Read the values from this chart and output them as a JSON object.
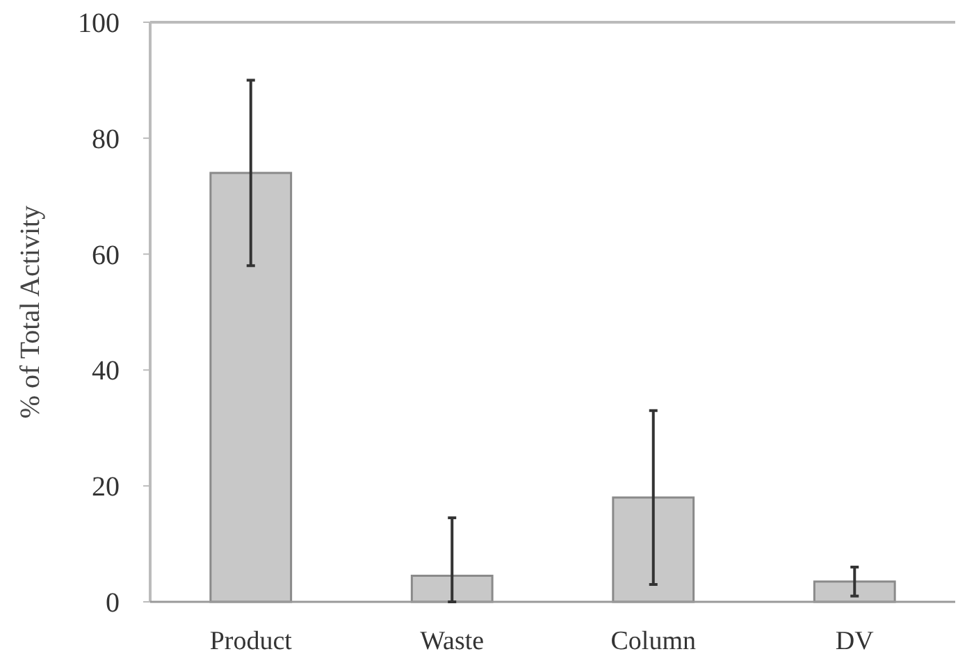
{
  "chart_data": {
    "type": "bar",
    "ylabel": "% of Total Activity",
    "categories": [
      "Product",
      "Waste",
      "Column",
      "DV"
    ],
    "values": [
      74,
      4.5,
      18,
      3.5
    ],
    "errors": [
      16,
      [
        0,
        14.5
      ],
      15,
      2.5
    ],
    "color": "#c8c8c8",
    "ylim": [
      0,
      100
    ],
    "yticks": [
      0,
      20,
      40,
      60,
      80,
      100
    ],
    "grid": false
  }
}
